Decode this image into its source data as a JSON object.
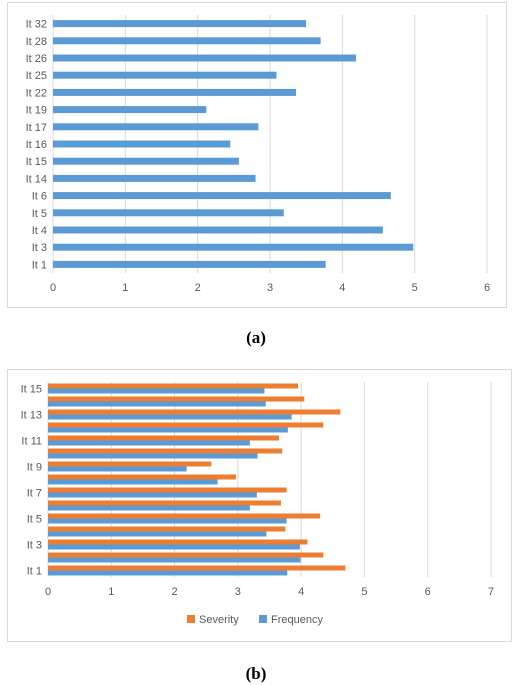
{
  "chart_data": [
    {
      "type": "bar",
      "orientation": "horizontal",
      "categories": [
        "It 1",
        "It 3",
        "It 4",
        "It 5",
        "It 6",
        "It 14",
        "It 15",
        "It 16",
        "It 17",
        "It 19",
        "It 22",
        "It 25",
        "It 26",
        "It 28",
        "It 32"
      ],
      "series": [
        {
          "values": [
            3.77,
            4.98,
            4.56,
            3.19,
            4.67,
            2.8,
            2.57,
            2.45,
            2.84,
            2.12,
            3.36,
            3.09,
            4.19,
            3.7,
            3.5
          ],
          "color": "#5b9bd5"
        }
      ],
      "x_ticks": [
        "0",
        "1",
        "2",
        "3",
        "4",
        "5",
        "6"
      ],
      "xlim": [
        0,
        6
      ],
      "grid": "vertical"
    },
    {
      "type": "bar",
      "orientation": "horizontal",
      "categories": [
        "It 1",
        "",
        "It 3",
        "",
        "It 5",
        "",
        "It 7",
        "",
        "It 9",
        "",
        "It 11",
        "",
        "It 13",
        "",
        "It 15"
      ],
      "series": [
        {
          "name": "Severity",
          "values": [
            4.7,
            4.35,
            4.1,
            3.75,
            4.3,
            3.68,
            3.77,
            2.97,
            2.58,
            3.7,
            3.65,
            4.35,
            4.62,
            4.05,
            3.95
          ],
          "color": "#ed7d31"
        },
        {
          "name": "Frequency",
          "values": [
            3.78,
            3.99,
            3.98,
            3.45,
            3.77,
            3.19,
            3.3,
            2.68,
            2.19,
            3.31,
            3.19,
            3.79,
            3.85,
            3.44,
            3.42
          ],
          "color": "#5b9bd5"
        }
      ],
      "x_ticks": [
        "0",
        "1",
        "2",
        "3",
        "4",
        "5",
        "6",
        "7"
      ],
      "xlim": [
        0,
        7
      ],
      "grid": "vertical",
      "legend_position": "bottom"
    }
  ],
  "captions": {
    "a": "(a)",
    "b": "(b)"
  },
  "legend_swatch_colors": {
    "severity": "#ed7d31",
    "frequency": "#5b9bd5"
  }
}
